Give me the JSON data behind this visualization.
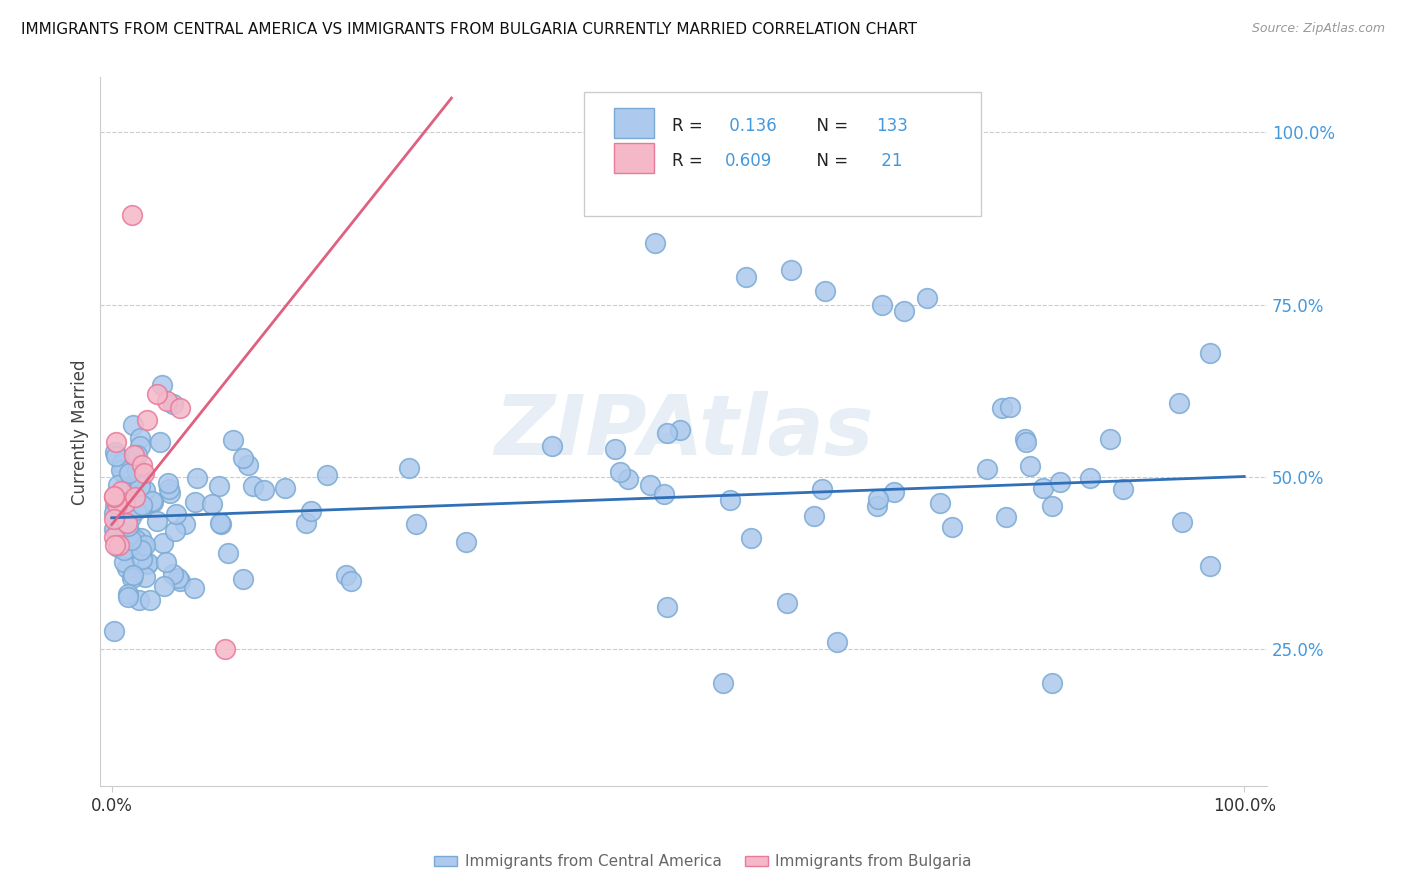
{
  "title": "IMMIGRANTS FROM CENTRAL AMERICA VS IMMIGRANTS FROM BULGARIA CURRENTLY MARRIED CORRELATION CHART",
  "source": "Source: ZipAtlas.com",
  "ylabel": "Currently Married",
  "legend_labels": [
    "Immigrants from Central America",
    "Immigrants from Bulgaria"
  ],
  "r_blue": 0.136,
  "n_blue": 133,
  "r_pink": 0.609,
  "n_pink": 21,
  "blue_color": "#adc9ed",
  "blue_edge": "#7aaad4",
  "pink_color": "#f5b8c8",
  "pink_edge": "#e87a9a",
  "line_blue": "#3070b8",
  "line_pink": "#e06080",
  "right_tick_color": "#4499dd",
  "watermark_color": "#e8eef5",
  "ylabel_right_labels": [
    "100.0%",
    "75.0%",
    "50.0%",
    "25.0%"
  ],
  "ylabel_right_positions": [
    1.0,
    0.75,
    0.5,
    0.25
  ],
  "blue_line_x0": 0.0,
  "blue_line_x1": 1.0,
  "blue_line_y0": 0.44,
  "blue_line_y1": 0.5,
  "pink_line_x0": 0.0,
  "pink_line_x1": 0.3,
  "pink_line_y0": 0.43,
  "pink_line_y1": 1.05,
  "xmin": 0.0,
  "xmax": 1.0,
  "ymin": 0.05,
  "ymax": 1.08
}
